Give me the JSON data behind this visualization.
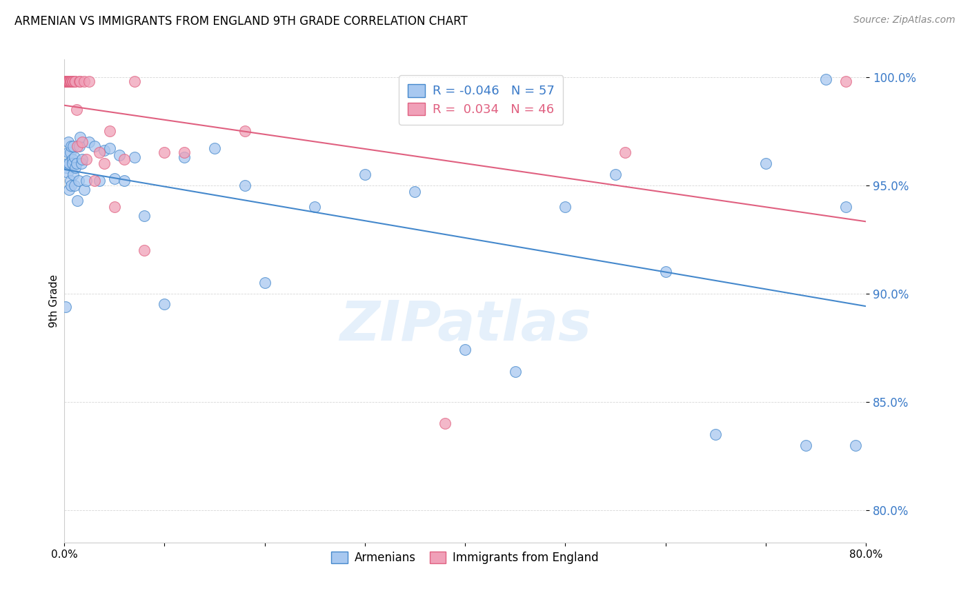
{
  "title": "ARMENIAN VS IMMIGRANTS FROM ENGLAND 9TH GRADE CORRELATION CHART",
  "source": "Source: ZipAtlas.com",
  "ylabel": "9th Grade",
  "watermark": "ZIPatlas",
  "xlim": [
    0.0,
    0.8
  ],
  "ylim": [
    0.785,
    1.008
  ],
  "xticks": [
    0.0,
    0.1,
    0.2,
    0.3,
    0.4,
    0.5,
    0.6,
    0.7,
    0.8
  ],
  "xtick_labels": [
    "0.0%",
    "",
    "",
    "",
    "",
    "",
    "",
    "",
    "80.0%"
  ],
  "ytick_labels": [
    "80.0%",
    "85.0%",
    "90.0%",
    "95.0%",
    "100.0%"
  ],
  "yticks": [
    0.8,
    0.85,
    0.9,
    0.95,
    1.0
  ],
  "legend_r_blue": "-0.046",
  "legend_n_blue": "57",
  "legend_r_pink": " 0.034",
  "legend_n_pink": "46",
  "blue_color": "#a8c8f0",
  "pink_color": "#f0a0b8",
  "line_blue_color": "#4488cc",
  "line_pink_color": "#e06080",
  "armenians_x": [
    0.001,
    0.002,
    0.003,
    0.003,
    0.004,
    0.004,
    0.005,
    0.005,
    0.006,
    0.006,
    0.007,
    0.007,
    0.008,
    0.008,
    0.009,
    0.009,
    0.01,
    0.01,
    0.011,
    0.012,
    0.013,
    0.014,
    0.015,
    0.016,
    0.017,
    0.018,
    0.02,
    0.022,
    0.025,
    0.03,
    0.035,
    0.04,
    0.045,
    0.05,
    0.055,
    0.06,
    0.07,
    0.08,
    0.1,
    0.12,
    0.15,
    0.18,
    0.2,
    0.25,
    0.3,
    0.35,
    0.4,
    0.45,
    0.5,
    0.55,
    0.6,
    0.65,
    0.7,
    0.74,
    0.76,
    0.78,
    0.79
  ],
  "armenians_y": [
    0.894,
    0.958,
    0.96,
    0.956,
    0.965,
    0.97,
    0.96,
    0.948,
    0.965,
    0.952,
    0.968,
    0.95,
    0.962,
    0.96,
    0.968,
    0.955,
    0.963,
    0.95,
    0.958,
    0.96,
    0.943,
    0.952,
    0.968,
    0.972,
    0.96,
    0.962,
    0.948,
    0.952,
    0.97,
    0.968,
    0.952,
    0.966,
    0.967,
    0.953,
    0.964,
    0.952,
    0.963,
    0.936,
    0.895,
    0.963,
    0.967,
    0.95,
    0.905,
    0.94,
    0.955,
    0.947,
    0.874,
    0.864,
    0.94,
    0.955,
    0.91,
    0.835,
    0.96,
    0.83,
    0.999,
    0.94,
    0.83
  ],
  "england_x": [
    0.001,
    0.001,
    0.002,
    0.002,
    0.002,
    0.003,
    0.003,
    0.003,
    0.004,
    0.004,
    0.004,
    0.005,
    0.005,
    0.005,
    0.006,
    0.006,
    0.006,
    0.007,
    0.007,
    0.008,
    0.008,
    0.009,
    0.01,
    0.011,
    0.012,
    0.013,
    0.015,
    0.016,
    0.018,
    0.02,
    0.022,
    0.025,
    0.03,
    0.035,
    0.04,
    0.045,
    0.05,
    0.06,
    0.07,
    0.08,
    0.1,
    0.12,
    0.18,
    0.38,
    0.56,
    0.78
  ],
  "england_y": [
    0.998,
    0.998,
    0.998,
    0.998,
    0.998,
    0.998,
    0.998,
    0.998,
    0.998,
    0.998,
    0.998,
    0.998,
    0.998,
    0.998,
    0.998,
    0.998,
    0.998,
    0.998,
    0.998,
    0.998,
    0.998,
    0.998,
    0.998,
    0.998,
    0.985,
    0.968,
    0.998,
    0.998,
    0.97,
    0.998,
    0.962,
    0.998,
    0.952,
    0.965,
    0.96,
    0.975,
    0.94,
    0.962,
    0.998,
    0.92,
    0.965,
    0.965,
    0.975,
    0.84,
    0.965,
    0.998
  ]
}
